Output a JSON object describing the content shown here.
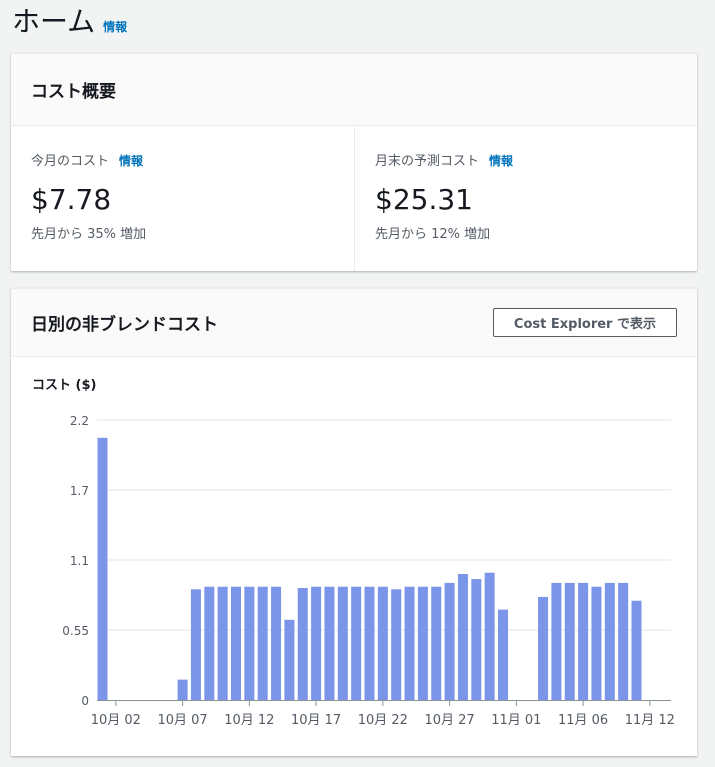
{
  "page": {
    "title": "ホーム",
    "info": "情報"
  },
  "cost_summary": {
    "title": "コスト概要",
    "current": {
      "label": "今月のコスト",
      "info": "情報",
      "value": "$7.78",
      "change": "先月から 35% 増加"
    },
    "forecast": {
      "label": "月末の予測コスト",
      "info": "情報",
      "value": "$25.31",
      "change": "先月から 12% 増加"
    }
  },
  "daily": {
    "title": "日別の非ブレンドコスト",
    "button_label": "Cost Explorer で表示"
  },
  "chart_data": {
    "type": "bar",
    "ylabel": "コスト ($)",
    "yticks": [
      "2.2",
      "1.7",
      "1.1",
      "0.55",
      "0"
    ],
    "ytick_values": [
      2.2,
      1.65,
      1.1,
      0.55,
      0
    ],
    "ylim": [
      0,
      2.2
    ],
    "grid": true,
    "xtick_labels": [
      "10月 02",
      "10月 07",
      "10月 12",
      "10月 17",
      "10月 22",
      "10月 27",
      "11月 01",
      "11月 06",
      "11月 12"
    ],
    "xtick_index": [
      1,
      6,
      11,
      16,
      21,
      26,
      31,
      36,
      41
    ],
    "bar_color": "#7b96e8",
    "values": [
      2.06,
      0,
      0,
      0,
      0,
      0,
      0.16,
      0.87,
      0.89,
      0.89,
      0.89,
      0.89,
      0.89,
      0.89,
      0.63,
      0.88,
      0.89,
      0.89,
      0.89,
      0.89,
      0.89,
      0.89,
      0.87,
      0.89,
      0.89,
      0.89,
      0.92,
      0.99,
      0.95,
      1.0,
      0.71,
      0,
      0,
      0.81,
      0.92,
      0.92,
      0.92,
      0.89,
      0.92,
      0.92,
      0.78
    ]
  }
}
